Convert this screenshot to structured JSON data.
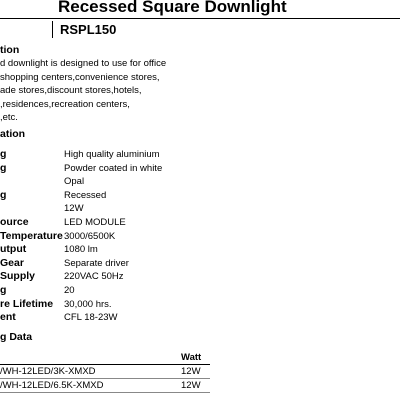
{
  "header": {
    "title": "Recessed Square Downlight",
    "code": "RSPL150"
  },
  "description": {
    "heading": "tion",
    "lines": [
      "d downlight is designed to use for office",
      "shopping centers,convenience stores,",
      "ade stores,discount stores,hotels,",
      ",residences,recreation centers,",
      ",etc."
    ]
  },
  "specification": {
    "heading": "ation",
    "rows": [
      {
        "label": "g",
        "value": "High quality aluminium"
      },
      {
        "label": "g",
        "value": "Powder coated in white"
      },
      {
        "label": "",
        "value": "Opal"
      },
      {
        "label": "g",
        "value": "Recessed"
      },
      {
        "label": "",
        "value": "12W"
      },
      {
        "label": "ource",
        "value": "LED MODULE"
      },
      {
        "label": "Temperature",
        "value": "3000/6500K"
      },
      {
        "label": "utput",
        "value": "1080 lm"
      },
      {
        "label": "Gear",
        "value": "Separate driver"
      },
      {
        "label": "Supply",
        "value": "220VAC 50Hz"
      },
      {
        "label": "g",
        "value": "20"
      },
      {
        "label": "re Lifetime",
        "value": "30,000 hrs."
      },
      {
        "label": "ent",
        "value": "CFL 18-23W"
      }
    ]
  },
  "ordering": {
    "heading": "g Data",
    "watt_header": "Watt",
    "rows": [
      {
        "code": "/WH-12LED/3K-XMXD",
        "watt": "12W"
      },
      {
        "code": "/WH-12LED/6.5K-XMXD",
        "watt": "12W"
      }
    ]
  }
}
